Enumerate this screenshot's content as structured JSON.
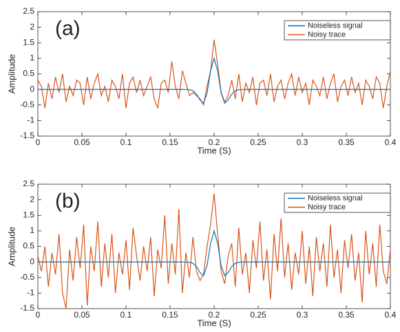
{
  "chart_data": [
    {
      "type": "line",
      "annotation": "(a)",
      "xlabel": "Time (S)",
      "ylabel": "Amplitude",
      "legend": "northeast",
      "xlim": [
        0,
        0.4
      ],
      "ylim": [
        -1.5,
        2.5
      ],
      "xticks": [
        0,
        0.05,
        0.1,
        0.15,
        0.2,
        0.25,
        0.3,
        0.35,
        0.4
      ],
      "yticks": [
        -1.5,
        -1,
        -0.5,
        0,
        0.5,
        1,
        1.5,
        2,
        2.5
      ],
      "x": [
        0,
        0.004,
        0.008,
        0.012,
        0.016,
        0.02,
        0.024,
        0.028,
        0.032,
        0.036,
        0.04,
        0.044,
        0.048,
        0.052,
        0.056,
        0.06,
        0.064,
        0.068,
        0.072,
        0.076,
        0.08,
        0.084,
        0.088,
        0.092,
        0.096,
        0.1,
        0.104,
        0.108,
        0.112,
        0.116,
        0.12,
        0.124,
        0.128,
        0.132,
        0.136,
        0.14,
        0.144,
        0.148,
        0.152,
        0.156,
        0.16,
        0.164,
        0.168,
        0.172,
        0.176,
        0.18,
        0.184,
        0.188,
        0.192,
        0.196,
        0.2,
        0.204,
        0.208,
        0.212,
        0.216,
        0.22,
        0.224,
        0.228,
        0.232,
        0.236,
        0.24,
        0.244,
        0.248,
        0.252,
        0.256,
        0.26,
        0.264,
        0.268,
        0.272,
        0.276,
        0.28,
        0.284,
        0.288,
        0.292,
        0.296,
        0.3,
        0.304,
        0.308,
        0.312,
        0.316,
        0.32,
        0.324,
        0.328,
        0.332,
        0.336,
        0.34,
        0.344,
        0.348,
        0.352,
        0.356,
        0.36,
        0.364,
        0.368,
        0.372,
        0.376,
        0.38,
        0.384,
        0.388,
        0.392,
        0.396,
        0.4
      ],
      "series": [
        {
          "name": "Noiseless signal",
          "color": "#0072bd",
          "values": [
            0,
            0,
            0,
            0,
            0,
            0,
            0,
            0,
            0,
            0,
            0,
            0,
            0,
            0,
            0,
            0,
            0,
            0,
            0,
            0,
            0,
            0,
            0,
            0,
            0,
            0,
            0,
            0,
            0,
            0,
            0,
            0,
            0,
            0,
            0,
            0,
            0,
            0,
            0,
            0,
            0,
            0,
            -0.001,
            -0.008,
            -0.042,
            -0.148,
            -0.34,
            -0.442,
            -0.117,
            0.598,
            1,
            0.598,
            -0.117,
            -0.442,
            -0.34,
            -0.148,
            -0.042,
            -0.008,
            -0.001,
            0,
            0,
            0,
            0,
            0,
            0,
            0,
            0,
            0,
            0,
            0,
            0,
            0,
            0,
            0,
            0,
            0,
            0,
            0,
            0,
            0,
            0,
            0,
            0,
            0,
            0,
            0,
            0,
            0,
            0,
            0,
            0,
            0,
            0,
            0,
            0,
            0,
            0,
            0,
            0,
            0,
            0
          ]
        },
        {
          "name": "Noisy trace",
          "color": "#d95319",
          "values": [
            0.3,
            0.1,
            -0.6,
            0.2,
            -0.3,
            0.4,
            -0.1,
            0.5,
            -0.4,
            0.1,
            -0.2,
            0.3,
            0.2,
            -0.5,
            0.4,
            -0.3,
            0.2,
            0.5,
            -0.2,
            0.1,
            -0.4,
            0.3,
            0.1,
            -0.3,
            0.5,
            -0.6,
            0.2,
            0.4,
            -0.1,
            0.3,
            -0.2,
            0.1,
            0.4,
            -0.3,
            -0.6,
            0.2,
            0.3,
            -0.1,
            0.9,
            0.1,
            -0.3,
            0.6,
            0.2,
            -0.2,
            -0.1,
            -0.2,
            -0.3,
            -0.5,
            0.1,
            0.6,
            1.6,
            0.8,
            -0.1,
            -0.4,
            -0.2,
            0.3,
            -0.3,
            0.5,
            -0.4,
            0.2,
            -0.1,
            0.4,
            -0.5,
            0.2,
            0.3,
            -0.2,
            0.5,
            -0.4,
            0.1,
            0.3,
            -0.3,
            0.2,
            0.5,
            -0.2,
            0.4,
            -0.1,
            0.2,
            -0.5,
            0.3,
            0.1,
            -0.2,
            0.4,
            -0.3,
            0.2,
            0.5,
            -0.4,
            0.1,
            0.3,
            -0.2,
            0.4,
            -0.1,
            0.2,
            -0.5,
            0.3,
            0.1,
            -0.3,
            0.4,
            0.2,
            -0.6,
            0.1,
            0.6
          ]
        }
      ]
    },
    {
      "type": "line",
      "annotation": "(b)",
      "xlabel": "Time (S)",
      "ylabel": "Amplitude",
      "legend": "northeast",
      "xlim": [
        0,
        0.4
      ],
      "ylim": [
        -1.5,
        2.5
      ],
      "xticks": [
        0,
        0.05,
        0.1,
        0.15,
        0.2,
        0.25,
        0.3,
        0.35,
        0.4
      ],
      "yticks": [
        -1.5,
        -1,
        -0.5,
        0,
        0.5,
        1,
        1.5,
        2,
        2.5
      ],
      "x": [
        0,
        0.004,
        0.008,
        0.012,
        0.016,
        0.02,
        0.024,
        0.028,
        0.032,
        0.036,
        0.04,
        0.044,
        0.048,
        0.052,
        0.056,
        0.06,
        0.064,
        0.068,
        0.072,
        0.076,
        0.08,
        0.084,
        0.088,
        0.092,
        0.096,
        0.1,
        0.104,
        0.108,
        0.112,
        0.116,
        0.12,
        0.124,
        0.128,
        0.132,
        0.136,
        0.14,
        0.144,
        0.148,
        0.152,
        0.156,
        0.16,
        0.164,
        0.168,
        0.172,
        0.176,
        0.18,
        0.184,
        0.188,
        0.192,
        0.196,
        0.2,
        0.204,
        0.208,
        0.212,
        0.216,
        0.22,
        0.224,
        0.228,
        0.232,
        0.236,
        0.24,
        0.244,
        0.248,
        0.252,
        0.256,
        0.26,
        0.264,
        0.268,
        0.272,
        0.276,
        0.28,
        0.284,
        0.288,
        0.292,
        0.296,
        0.3,
        0.304,
        0.308,
        0.312,
        0.316,
        0.32,
        0.324,
        0.328,
        0.332,
        0.336,
        0.34,
        0.344,
        0.348,
        0.352,
        0.356,
        0.36,
        0.364,
        0.368,
        0.372,
        0.376,
        0.38,
        0.384,
        0.388,
        0.392,
        0.396,
        0.4
      ],
      "series": [
        {
          "name": "Noiseless signal",
          "color": "#0072bd",
          "values": [
            0,
            0,
            0,
            0,
            0,
            0,
            0,
            0,
            0,
            0,
            0,
            0,
            0,
            0,
            0,
            0,
            0,
            0,
            0,
            0,
            0,
            0,
            0,
            0,
            0,
            0,
            0,
            0,
            0,
            0,
            0,
            0,
            0,
            0,
            0,
            0,
            0,
            0,
            0,
            0,
            0,
            0,
            -0.001,
            -0.008,
            -0.042,
            -0.148,
            -0.34,
            -0.442,
            -0.117,
            0.598,
            1,
            0.598,
            -0.117,
            -0.442,
            -0.34,
            -0.148,
            -0.042,
            -0.008,
            -0.001,
            0,
            0,
            0,
            0,
            0,
            0,
            0,
            0,
            0,
            0,
            0,
            0,
            0,
            0,
            0,
            0,
            0,
            0,
            0,
            0,
            0,
            0,
            0,
            0,
            0,
            0,
            0,
            0,
            0,
            0,
            0,
            0,
            0,
            0,
            0,
            0,
            0,
            0,
            0,
            0,
            0,
            0
          ]
        },
        {
          "name": "Noisy trace",
          "color": "#d95319",
          "values": [
            0.2,
            -0.3,
            0.5,
            -0.8,
            0.3,
            -0.4,
            0.9,
            -1.0,
            -1.5,
            0.4,
            -0.6,
            0.8,
            -0.2,
            1.2,
            -1.4,
            0.5,
            -0.3,
            1.3,
            -0.8,
            0.6,
            -0.5,
            0.9,
            -1.0,
            0.3,
            -0.4,
            0.7,
            -0.9,
            1.1,
            0.2,
            -0.6,
            0.5,
            -0.3,
            0.8,
            -1.1,
            0.4,
            -0.2,
            1.5,
            -0.7,
            0.6,
            -0.4,
            1.7,
            -1.0,
            0.3,
            -0.5,
            0.8,
            -0.3,
            -0.6,
            -0.4,
            0.5,
            1.2,
            2.2,
            0.9,
            -0.3,
            -0.7,
            0.2,
            0.6,
            -0.8,
            1.1,
            -0.4,
            0.3,
            -1.0,
            0.7,
            -0.2,
            1.3,
            -0.6,
            0.4,
            -1.2,
            0.9,
            -0.3,
            1.4,
            -0.5,
            0.6,
            -0.9,
            0.3,
            -0.4,
            1.0,
            -0.7,
            0.5,
            -1.1,
            0.8,
            -0.3,
            0.6,
            -0.8,
            1.2,
            -0.5,
            0.4,
            -1.0,
            0.7,
            -0.2,
            0.9,
            -0.6,
            0.3,
            -1.3,
            1.0,
            -0.4,
            0.6,
            -0.8,
            1.2,
            -0.3,
            -0.7,
            0.4
          ]
        }
      ]
    }
  ]
}
